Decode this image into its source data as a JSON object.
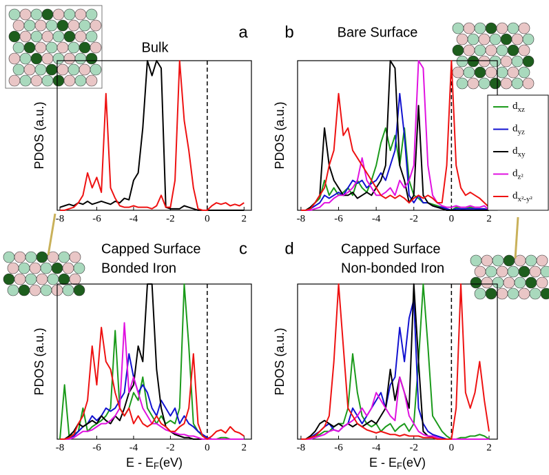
{
  "chart_data": [
    {
      "type": "line",
      "panel_label": "a",
      "title": "Bulk",
      "y_label": "PDOS (a.u.)",
      "x": [
        -8,
        -7.75,
        -7.5,
        -7.25,
        -7,
        -6.75,
        -6.5,
        -6.25,
        -6,
        -5.75,
        -5.5,
        -5.25,
        -5,
        -4.75,
        -4.5,
        -4.25,
        -4,
        -3.75,
        -3.5,
        -3.25,
        -3,
        -2.75,
        -2.5,
        -2.25,
        -2,
        -1.75,
        -1.5,
        -1.25,
        -1,
        -0.75,
        -0.5,
        -0.25,
        0,
        0.25,
        0.5,
        0.75,
        1,
        1.25,
        1.5,
        1.75,
        2
      ],
      "xlim": [
        -8.15,
        2.4
      ],
      "xticks": [
        -8,
        -6,
        -4,
        -2,
        0,
        2
      ],
      "ylim": [
        0,
        1
      ],
      "series": [
        {
          "color": "#000000",
          "values": [
            0.02,
            0.03,
            0.04,
            0.03,
            0.05,
            0.04,
            0.06,
            0.04,
            0.05,
            0.06,
            0.05,
            0.04,
            0.06,
            0.05,
            0.08,
            0.07,
            0.2,
            0.25,
            0.55,
            1.0,
            0.9,
            1.0,
            0.95,
            0.02,
            0.01,
            0.01,
            0.01,
            0.03,
            0.02,
            0.01,
            0,
            0,
            0,
            0,
            0,
            0,
            0,
            0,
            0,
            0,
            0
          ]
        },
        {
          "color": "#ee1111",
          "values": [
            0,
            0,
            0.01,
            0.02,
            0.05,
            0.1,
            0.25,
            0.15,
            0.22,
            0.12,
            0.78,
            0.15,
            0.08,
            0.03,
            0.02,
            0.02,
            0.03,
            0.02,
            0.02,
            0.02,
            0.01,
            0.03,
            0.1,
            0.02,
            0.02,
            0.2,
            1.0,
            0.6,
            0.4,
            0.15,
            0.01,
            0,
            0,
            0.03,
            0.05,
            0.04,
            0.05,
            0.03,
            0.04,
            0.03,
            0.05
          ]
        }
      ]
    },
    {
      "type": "line",
      "panel_label": "b",
      "title": "Bare Surface",
      "y_label": "PDOS (a.u.)",
      "legend": "right",
      "x": [
        -8,
        -7.75,
        -7.5,
        -7.25,
        -7,
        -6.75,
        -6.5,
        -6.25,
        -6,
        -5.75,
        -5.5,
        -5.25,
        -5,
        -4.75,
        -4.5,
        -4.25,
        -4,
        -3.75,
        -3.5,
        -3.25,
        -3,
        -2.75,
        -2.5,
        -2.25,
        -2,
        -1.75,
        -1.5,
        -1.25,
        -1,
        -0.75,
        -0.5,
        -0.25,
        0,
        0.25,
        0.5,
        0.75,
        1,
        1.25,
        1.5,
        1.75,
        2
      ],
      "xlim": [
        -8.18,
        2.44
      ],
      "xticks": [
        -8,
        -6,
        -4,
        -2,
        0,
        2
      ],
      "ylim": [
        0,
        1
      ],
      "series": [
        {
          "name": "dxz",
          "color": "#1a9a1a",
          "values": [
            0,
            0,
            0.02,
            0.05,
            0.08,
            0.2,
            0.1,
            0.15,
            0.1,
            0.12,
            0.15,
            0.1,
            0.2,
            0.15,
            0.12,
            0.2,
            0.3,
            0.45,
            0.55,
            0.4,
            0.5,
            0.3,
            0.55,
            0.2,
            0.1,
            0.08,
            0.05,
            0.05,
            0.04,
            0.03,
            0.02,
            0.01,
            0,
            0.02,
            0.01,
            0.01,
            0.02,
            0.01,
            0.01,
            0.01,
            0
          ]
        },
        {
          "name": "dyz",
          "color": "#1111d0",
          "values": [
            0,
            0,
            0.01,
            0.03,
            0.05,
            0.1,
            0.08,
            0.1,
            0.12,
            0.1,
            0.15,
            0.2,
            0.18,
            0.2,
            0.15,
            0.18,
            0.2,
            0.25,
            0.2,
            0.3,
            0.4,
            0.78,
            0.5,
            0.1,
            0.05,
            0.1,
            0.05,
            0.05,
            0.03,
            0.02,
            0.02,
            0.01,
            0,
            0.01,
            0.01,
            0.01,
            0.01,
            0.01,
            0.01,
            0.01,
            0
          ]
        },
        {
          "name": "dxy",
          "color": "#000000",
          "values": [
            0,
            0,
            0.02,
            0.05,
            0.1,
            0.55,
            0.3,
            0.2,
            0.15,
            0.1,
            0.1,
            0.12,
            0.08,
            0.1,
            0.12,
            0.1,
            0.15,
            0.2,
            0.3,
            1.0,
            0.95,
            0.3,
            0.2,
            0.05,
            0.1,
            0.7,
            0.1,
            0.05,
            0.03,
            0.02,
            0.01,
            0,
            0,
            0,
            0,
            0,
            0,
            0,
            0,
            0,
            0
          ]
        },
        {
          "name": "dz²",
          "color": "#e011e0",
          "values": [
            0,
            0,
            0,
            0.01,
            0.02,
            0.05,
            0.05,
            0.08,
            0.1,
            0.1,
            0.12,
            0.15,
            0.2,
            0.35,
            0.2,
            0.15,
            0.1,
            0.1,
            0.12,
            0.15,
            0.1,
            0.2,
            0.15,
            0.2,
            0.3,
            1.0,
            0.95,
            0.3,
            0.1,
            0.05,
            0.03,
            0.02,
            0.02,
            0.03,
            0.02,
            0.02,
            0.03,
            0.02,
            0.02,
            0.03,
            0
          ]
        },
        {
          "name": "dx²-y²",
          "color": "#ee1111",
          "values": [
            0,
            0,
            0.01,
            0.05,
            0.1,
            0.15,
            0.3,
            0.4,
            0.78,
            0.5,
            0.55,
            0.4,
            0.35,
            0.3,
            0.25,
            0.2,
            0.15,
            0.1,
            0.08,
            0.1,
            0.08,
            0.1,
            0.08,
            0.05,
            0.08,
            0.1,
            0.08,
            0.1,
            0.08,
            0.05,
            0.05,
            0.3,
            1.0,
            0.3,
            0.15,
            0.1,
            0.12,
            0.1,
            0.08,
            0.05,
            0.02
          ]
        }
      ]
    },
    {
      "type": "line",
      "panel_label": "c",
      "title": "Capped Surface",
      "subtitle": "Bonded Iron",
      "y_label": "PDOS (a.u.)",
      "x_label": [
        "E - E",
        "F",
        "(eV)"
      ],
      "x": [
        -8,
        -7.75,
        -7.5,
        -7.25,
        -7,
        -6.75,
        -6.5,
        -6.25,
        -6,
        -5.75,
        -5.5,
        -5.25,
        -5,
        -4.75,
        -4.5,
        -4.25,
        -4,
        -3.75,
        -3.5,
        -3.25,
        -3,
        -2.75,
        -2.5,
        -2.25,
        -2,
        -1.75,
        -1.5,
        -1.25,
        -1,
        -0.75,
        -0.5,
        -0.25,
        0,
        0.25,
        0.5,
        0.75,
        1,
        1.25,
        1.5,
        1.75,
        2
      ],
      "xlim": [
        -8.15,
        2.4
      ],
      "xticks": [
        -8,
        -6,
        -4,
        -2,
        0,
        2
      ],
      "ylim": [
        0,
        1
      ],
      "series": [
        {
          "color": "#1a9a1a",
          "values": [
            0,
            0.35,
            0.02,
            0.03,
            0.05,
            0.2,
            0.05,
            0.08,
            0.1,
            0.12,
            0.15,
            0.2,
            0.7,
            0.2,
            0.15,
            0.2,
            0.3,
            0.25,
            0.4,
            0.2,
            0.15,
            0.1,
            0.15,
            0.1,
            0.12,
            0.1,
            0.2,
            1.0,
            0.6,
            0.1,
            0.05,
            0.02,
            0,
            0,
            0,
            0.01,
            0.01,
            0,
            0,
            0,
            0
          ]
        },
        {
          "color": "#1111d0",
          "values": [
            0,
            0,
            0.01,
            0.02,
            0.05,
            0.08,
            0.1,
            0.15,
            0.12,
            0.15,
            0.2,
            0.18,
            0.2,
            0.25,
            0.3,
            0.55,
            0.4,
            0.3,
            0.35,
            0.3,
            0.2,
            0.15,
            0.25,
            0.2,
            0.15,
            0.2,
            0.1,
            0.15,
            0.1,
            0.08,
            0.05,
            0.03,
            0.01,
            0,
            0,
            0,
            0,
            0,
            0,
            0,
            0
          ]
        },
        {
          "color": "#000000",
          "values": [
            0,
            0,
            0.02,
            0.05,
            0.1,
            0.08,
            0.1,
            0.12,
            0.1,
            0.15,
            0.12,
            0.1,
            0.15,
            0.12,
            0.2,
            0.3,
            0.35,
            0.6,
            0.5,
            1.0,
            1.0,
            0.45,
            0.2,
            0.08,
            0.05,
            0.03,
            0.02,
            0.01,
            0.01,
            0,
            0,
            0,
            0,
            0,
            0,
            0,
            0,
            0,
            0,
            0,
            0
          ]
        },
        {
          "color": "#e011e0",
          "values": [
            0,
            0,
            0,
            0.01,
            0.03,
            0.05,
            0.05,
            0.06,
            0.08,
            0.1,
            0.1,
            0.12,
            0.15,
            0.2,
            0.75,
            0.3,
            0.4,
            0.3,
            0.2,
            0.15,
            0.1,
            0.1,
            0.08,
            0.06,
            0.05,
            0.04,
            0.03,
            0.03,
            0.02,
            0.02,
            0.01,
            0,
            0,
            0,
            0,
            0,
            0,
            0,
            0,
            0,
            0
          ]
        },
        {
          "color": "#ee1111",
          "values": [
            0,
            0,
            0.01,
            0.03,
            0.1,
            0.15,
            0.25,
            0.6,
            0.35,
            0.72,
            0.5,
            0.45,
            0.3,
            0.2,
            0.15,
            0.2,
            0.1,
            0.15,
            0.1,
            0.08,
            0.1,
            0.15,
            0.1,
            0.08,
            0.05,
            0.05,
            0.08,
            0.1,
            0.2,
            0.55,
            0.1,
            0.02,
            0,
            0.02,
            0.05,
            0.06,
            0.04,
            0.08,
            0.05,
            0.04,
            0.02
          ]
        }
      ]
    },
    {
      "type": "line",
      "panel_label": "d",
      "title": "Capped Surface",
      "subtitle": "Non-bonded Iron",
      "y_label": "PDOS (a.u.)",
      "x_label": [
        "E - E",
        "F",
        "(eV)"
      ],
      "x": [
        -8,
        -7.75,
        -7.5,
        -7.25,
        -7,
        -6.75,
        -6.5,
        -6.25,
        -6,
        -5.75,
        -5.5,
        -5.25,
        -5,
        -4.75,
        -4.5,
        -4.25,
        -4,
        -3.75,
        -3.5,
        -3.25,
        -3,
        -2.75,
        -2.5,
        -2.25,
        -2,
        -1.75,
        -1.5,
        -1.25,
        -1,
        -0.75,
        -0.5,
        -0.25,
        0,
        0.25,
        0.5,
        0.75,
        1,
        1.25,
        1.5,
        1.75,
        2
      ],
      "xlim": [
        -8.18,
        2.44
      ],
      "xticks": [
        -8,
        -6,
        -4,
        -2,
        0,
        2
      ],
      "ylim": [
        0,
        1
      ],
      "series": [
        {
          "color": "#1a9a1a",
          "values": [
            0,
            0,
            0.01,
            0.02,
            0.03,
            0.05,
            0.05,
            0.08,
            0.1,
            0.1,
            0.2,
            0.55,
            0.3,
            0.15,
            0.1,
            0.08,
            0.1,
            0.05,
            0.08,
            0.1,
            0.05,
            0.08,
            0.1,
            0.05,
            0.1,
            0.5,
            1.0,
            0.6,
            0.15,
            0.1,
            0.05,
            0.02,
            0,
            0,
            0.01,
            0.01,
            0.02,
            0.02,
            0.03,
            0.02,
            0
          ]
        },
        {
          "color": "#1111d0",
          "values": [
            0,
            0,
            0.01,
            0.03,
            0.05,
            0.08,
            0.1,
            0.06,
            0.05,
            0.08,
            0.1,
            0.2,
            0.15,
            0.1,
            0.15,
            0.2,
            0.25,
            0.3,
            0.2,
            0.35,
            0.4,
            0.72,
            0.5,
            0.78,
            0.9,
            0.2,
            0.1,
            0.05,
            0.03,
            0.02,
            0.01,
            0,
            0,
            0,
            0,
            0,
            0,
            0,
            0,
            0,
            0
          ]
        },
        {
          "color": "#000000",
          "values": [
            0,
            0,
            0.02,
            0.05,
            0.1,
            0.12,
            0.1,
            0.08,
            0.1,
            0.08,
            0.1,
            0.08,
            0.1,
            0.08,
            0.1,
            0.12,
            0.1,
            0.15,
            0.2,
            0.45,
            0.25,
            0.4,
            0.3,
            0.2,
            1.0,
            0.5,
            0.05,
            0.02,
            0.01,
            0,
            0,
            0,
            0,
            0,
            0,
            0,
            0,
            0,
            0,
            0,
            0
          ]
        },
        {
          "color": "#e011e0",
          "values": [
            0,
            0,
            0,
            0.01,
            0.02,
            0.03,
            0.05,
            0.06,
            0.05,
            0.08,
            0.1,
            0.12,
            0.15,
            0.2,
            0.15,
            0.2,
            0.3,
            0.25,
            0.2,
            0.15,
            0.12,
            0.4,
            0.3,
            0.15,
            0.1,
            0.05,
            0.03,
            0.02,
            0.02,
            0.01,
            0,
            0,
            0,
            0,
            0,
            0,
            0,
            0,
            0,
            0,
            0
          ]
        },
        {
          "color": "#ee1111",
          "values": [
            0,
            0,
            0.01,
            0.02,
            0.05,
            0.08,
            0.15,
            0.5,
            1.0,
            0.6,
            0.2,
            0.15,
            0.1,
            0.08,
            0.06,
            0.05,
            0.04,
            0.05,
            0.04,
            0.03,
            0.03,
            0.02,
            0.03,
            0.02,
            0.02,
            0.02,
            0.01,
            0.01,
            0.01,
            0,
            0,
            0,
            0,
            0.2,
            1.0,
            0.3,
            0.2,
            0.3,
            0.5,
            0.25,
            0.05
          ]
        }
      ]
    }
  ]
}
